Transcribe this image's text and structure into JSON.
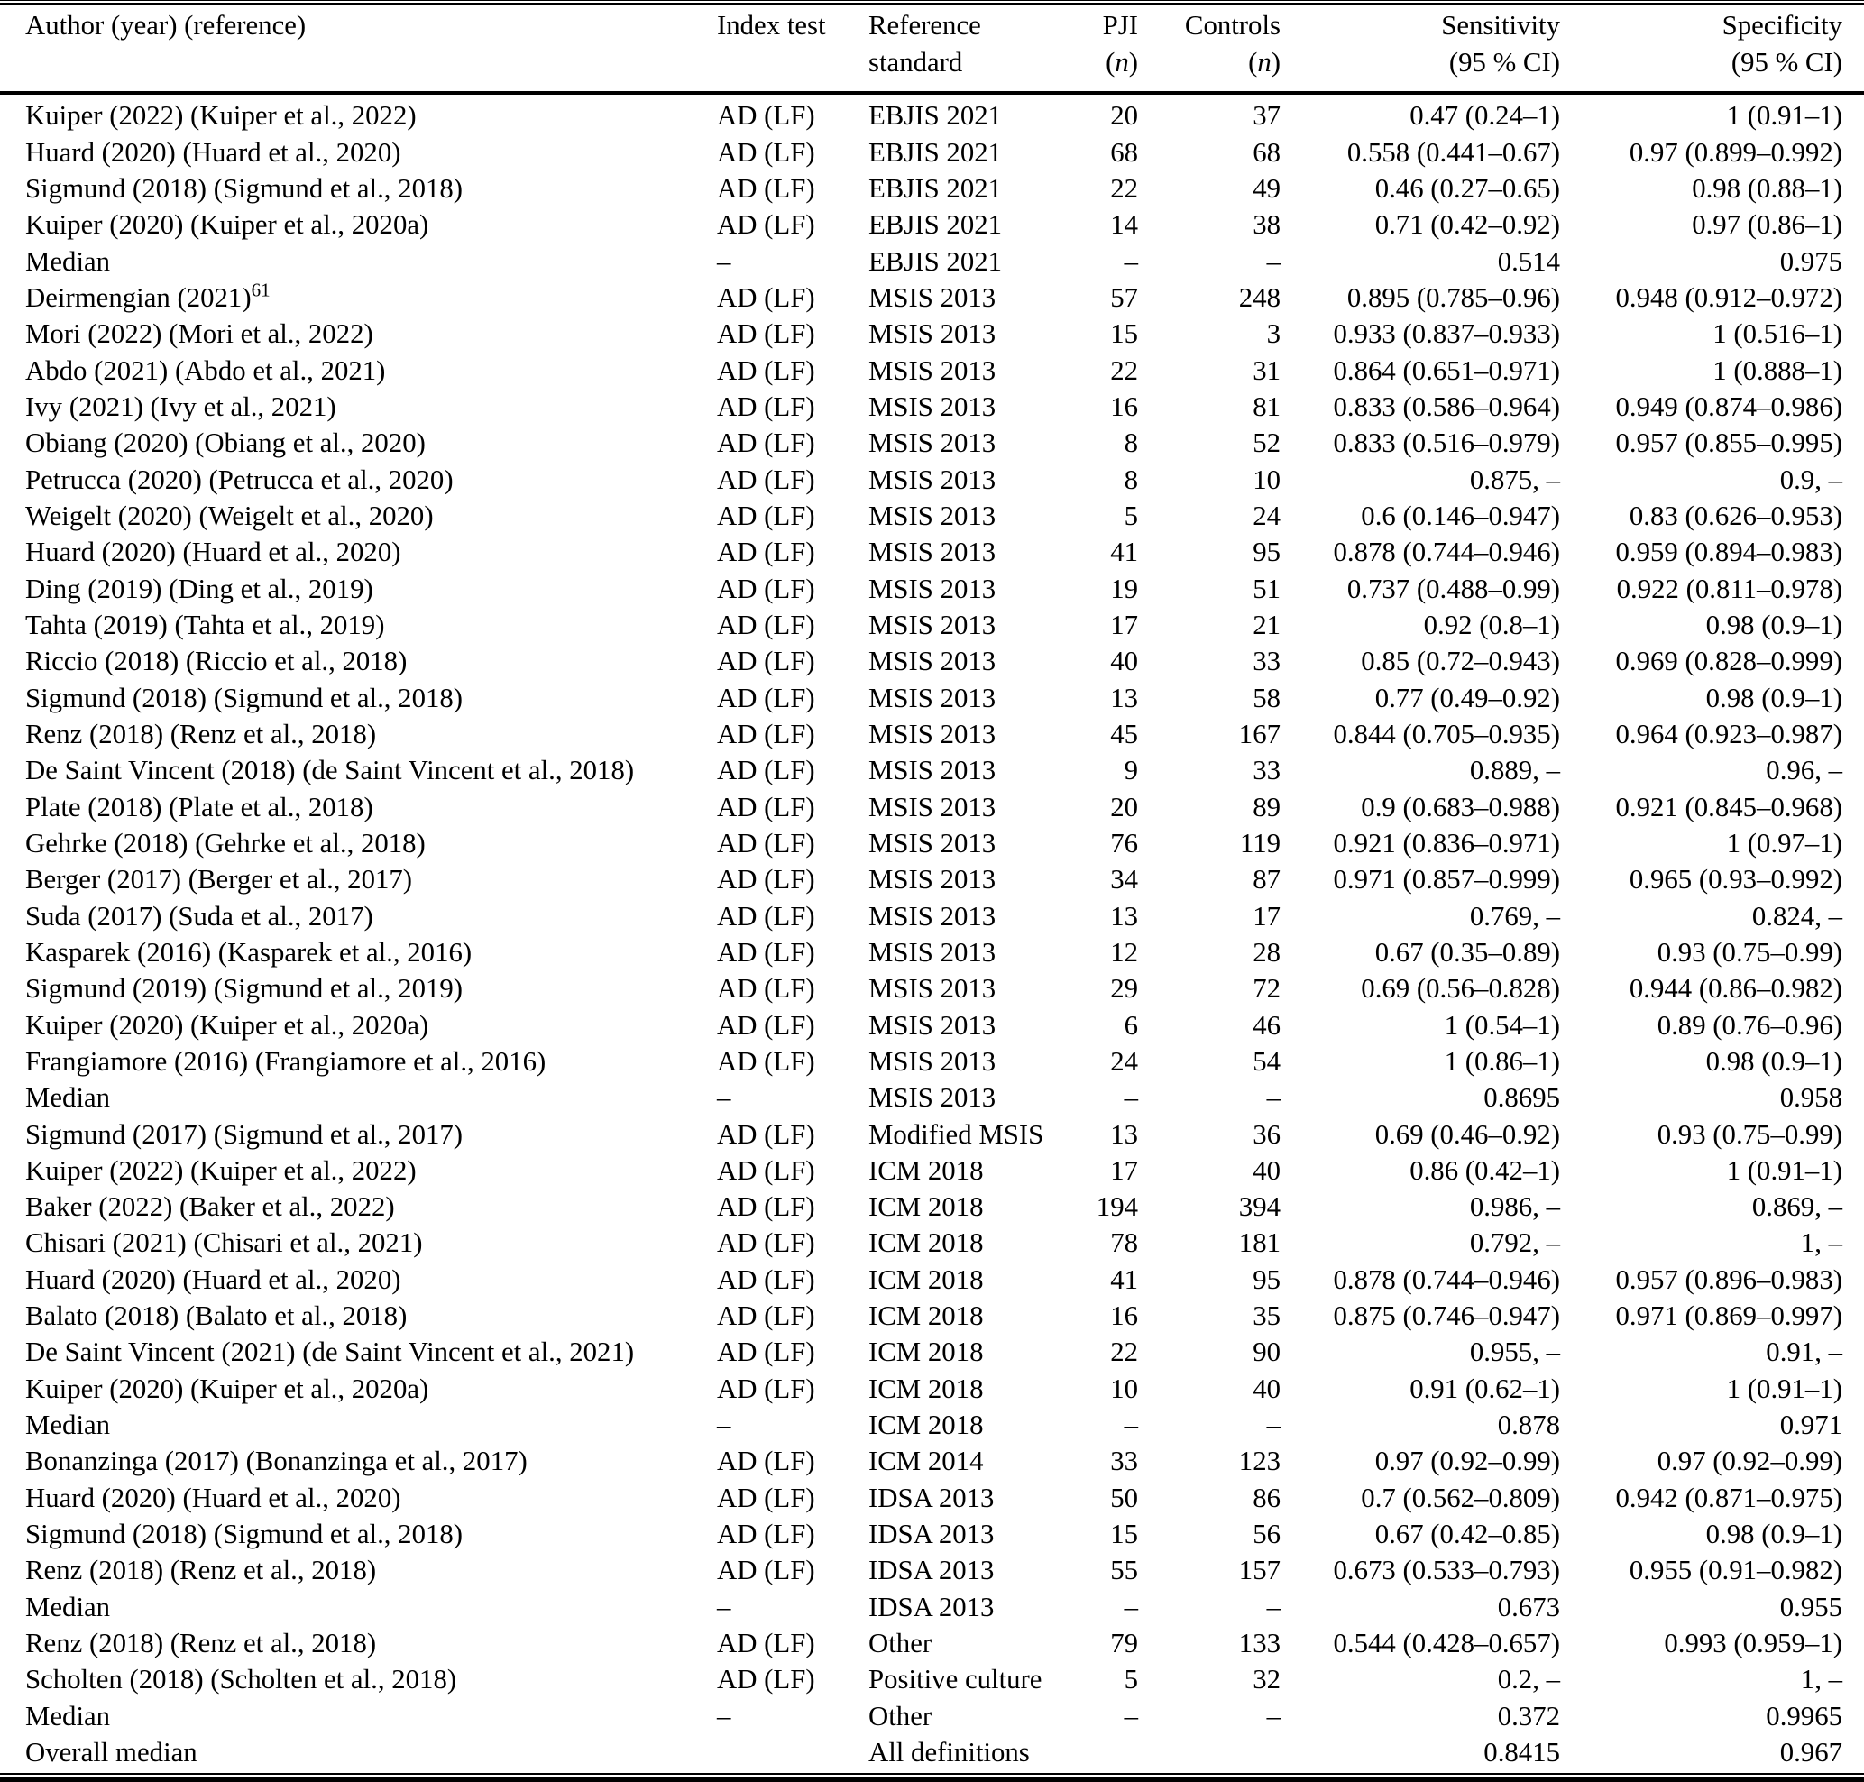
{
  "header": {
    "author": "Author (year) (reference)",
    "index_test": "Index test",
    "reference_line1": "Reference",
    "reference_line2": "standard",
    "pji": "PJI",
    "controls": "Controls",
    "n_open": "(",
    "n": "n",
    "n_close": ")",
    "sensitivity": "Sensitivity",
    "sensitivity_ci": "(95 % CI)",
    "specificity": "Specificity",
    "specificity_ci": "(95 % CI)"
  },
  "rows": [
    {
      "author": "Kuiper (2022) (Kuiper et al., 2022)",
      "index": "AD (LF)",
      "ref": "EBJIS 2021",
      "pji": "20",
      "controls": "37",
      "sens": "0.47 (0.24–1)",
      "spec": "1 (0.91–1)"
    },
    {
      "author": "Huard (2020) (Huard et al., 2020)",
      "index": "AD (LF)",
      "ref": "EBJIS 2021",
      "pji": "68",
      "controls": "68",
      "sens": "0.558 (0.441–0.67)",
      "spec": "0.97 (0.899–0.992)"
    },
    {
      "author": "Sigmund (2018) (Sigmund et al., 2018)",
      "index": "AD (LF)",
      "ref": "EBJIS 2021",
      "pji": "22",
      "controls": "49",
      "sens": "0.46 (0.27–0.65)",
      "spec": "0.98 (0.88–1)"
    },
    {
      "author": "Kuiper (2020) (Kuiper et al., 2020a)",
      "index": "AD (LF)",
      "ref": "EBJIS 2021",
      "pji": "14",
      "controls": "38",
      "sens": "0.71 (0.42–0.92)",
      "spec": "0.97 (0.86–1)"
    },
    {
      "author": "Median",
      "index": "–",
      "ref": "EBJIS 2021",
      "pji": "–",
      "controls": "–",
      "sens": "0.514",
      "spec": "0.975"
    },
    {
      "author": "Deirmengian (2021)",
      "sup": "61",
      "index": "AD (LF)",
      "ref": "MSIS 2013",
      "pji": "57",
      "controls": "248",
      "sens": "0.895 (0.785–0.96)",
      "spec": "0.948 (0.912–0.972)"
    },
    {
      "author": "Mori (2022) (Mori et al., 2022)",
      "index": "AD (LF)",
      "ref": "MSIS 2013",
      "pji": "15",
      "controls": "3",
      "sens": "0.933 (0.837–0.933)",
      "spec": "1 (0.516–1)"
    },
    {
      "author": "Abdo (2021) (Abdo et al., 2021)",
      "index": "AD (LF)",
      "ref": "MSIS 2013",
      "pji": "22",
      "controls": "31",
      "sens": "0.864 (0.651–0.971)",
      "spec": "1 (0.888–1)"
    },
    {
      "author": "Ivy (2021) (Ivy et al., 2021)",
      "index": "AD (LF)",
      "ref": "MSIS 2013",
      "pji": "16",
      "controls": "81",
      "sens": "0.833 (0.586–0.964)",
      "spec": "0.949 (0.874–0.986)"
    },
    {
      "author": "Obiang (2020) (Obiang et al., 2020)",
      "index": "AD (LF)",
      "ref": "MSIS 2013",
      "pji": "8",
      "controls": "52",
      "sens": "0.833 (0.516–0.979)",
      "spec": "0.957 (0.855–0.995)"
    },
    {
      "author": "Petrucca (2020) (Petrucca et al., 2020)",
      "index": "AD (LF)",
      "ref": "MSIS 2013",
      "pji": "8",
      "controls": "10",
      "sens": "0.875, –",
      "spec": "0.9, –"
    },
    {
      "author": "Weigelt (2020) (Weigelt et al., 2020)",
      "index": "AD (LF)",
      "ref": "MSIS 2013",
      "pji": "5",
      "controls": "24",
      "sens": "0.6 (0.146–0.947)",
      "spec": "0.83 (0.626–0.953)"
    },
    {
      "author": "Huard (2020) (Huard et al., 2020)",
      "index": "AD (LF)",
      "ref": "MSIS 2013",
      "pji": "41",
      "controls": "95",
      "sens": "0.878 (0.744–0.946)",
      "spec": "0.959 (0.894–0.983)"
    },
    {
      "author": "Ding (2019) (Ding et al., 2019)",
      "index": "AD (LF)",
      "ref": "MSIS 2013",
      "pji": "19",
      "controls": "51",
      "sens": "0.737 (0.488–0.99)",
      "spec": "0.922 (0.811–0.978)"
    },
    {
      "author": "Tahta (2019) (Tahta et al., 2019)",
      "index": "AD (LF)",
      "ref": "MSIS 2013",
      "pji": "17",
      "controls": "21",
      "sens": "0.92 (0.8–1)",
      "spec": "0.98 (0.9–1)"
    },
    {
      "author": "Riccio (2018) (Riccio et al., 2018)",
      "index": "AD (LF)",
      "ref": "MSIS 2013",
      "pji": "40",
      "controls": "33",
      "sens": "0.85 (0.72–0.943)",
      "spec": "0.969 (0.828–0.999)"
    },
    {
      "author": "Sigmund (2018) (Sigmund et al., 2018)",
      "index": "AD (LF)",
      "ref": "MSIS 2013",
      "pji": "13",
      "controls": "58",
      "sens": "0.77 (0.49–0.92)",
      "spec": "0.98 (0.9–1)"
    },
    {
      "author": "Renz (2018) (Renz et al., 2018)",
      "index": "AD (LF)",
      "ref": "MSIS 2013",
      "pji": "45",
      "controls": "167",
      "sens": "0.844 (0.705–0.935)",
      "spec": "0.964 (0.923–0.987)"
    },
    {
      "author": "De Saint Vincent (2018) (de Saint Vincent et al., 2018)",
      "index": "AD (LF)",
      "ref": "MSIS 2013",
      "pji": "9",
      "controls": "33",
      "sens": "0.889, –",
      "spec": "0.96, –"
    },
    {
      "author": "Plate (2018) (Plate et al., 2018)",
      "index": "AD (LF)",
      "ref": "MSIS 2013",
      "pji": "20",
      "controls": "89",
      "sens": "0.9 (0.683–0.988)",
      "spec": "0.921 (0.845–0.968)"
    },
    {
      "author": "Gehrke (2018) (Gehrke et al., 2018)",
      "index": "AD (LF)",
      "ref": "MSIS 2013",
      "pji": "76",
      "controls": "119",
      "sens": "0.921 (0.836–0.971)",
      "spec": "1 (0.97–1)"
    },
    {
      "author": "Berger (2017) (Berger et al., 2017)",
      "index": "AD (LF)",
      "ref": "MSIS 2013",
      "pji": "34",
      "controls": "87",
      "sens": "0.971 (0.857–0.999)",
      "spec": "0.965 (0.93–0.992)"
    },
    {
      "author": "Suda (2017) (Suda et al., 2017)",
      "index": "AD (LF)",
      "ref": "MSIS 2013",
      "pji": "13",
      "controls": "17",
      "sens": "0.769, –",
      "spec": "0.824, –"
    },
    {
      "author": "Kasparek (2016) (Kasparek et al., 2016)",
      "index": "AD (LF)",
      "ref": "MSIS 2013",
      "pji": "12",
      "controls": "28",
      "sens": "0.67 (0.35–0.89)",
      "spec": "0.93 (0.75–0.99)"
    },
    {
      "author": "Sigmund (2019) (Sigmund et al., 2019)",
      "index": "AD (LF)",
      "ref": "MSIS 2013",
      "pji": "29",
      "controls": "72",
      "sens": "0.69 (0.56–0.828)",
      "spec": "0.944 (0.86–0.982)"
    },
    {
      "author": "Kuiper (2020) (Kuiper et al., 2020a)",
      "index": "AD (LF)",
      "ref": "MSIS 2013",
      "pji": "6",
      "controls": "46",
      "sens": "1 (0.54–1)",
      "spec": "0.89 (0.76–0.96)"
    },
    {
      "author": "Frangiamore (2016) (Frangiamore et al., 2016)",
      "index": "AD (LF)",
      "ref": "MSIS 2013",
      "pji": "24",
      "controls": "54",
      "sens": "1 (0.86–1)",
      "spec": "0.98 (0.9–1)"
    },
    {
      "author": "Median",
      "index": "–",
      "ref": "MSIS 2013",
      "pji": "–",
      "controls": "–",
      "sens": "0.8695",
      "spec": "0.958"
    },
    {
      "author": "Sigmund (2017) (Sigmund et al., 2017)",
      "index": "AD (LF)",
      "ref": "Modified MSIS",
      "pji": "13",
      "controls": "36",
      "sens": "0.69 (0.46–0.92)",
      "spec": "0.93 (0.75–0.99)"
    },
    {
      "author": "Kuiper (2022) (Kuiper et al., 2022)",
      "index": "AD (LF)",
      "ref": "ICM 2018",
      "pji": "17",
      "controls": "40",
      "sens": "0.86 (0.42–1)",
      "spec": "1 (0.91–1)"
    },
    {
      "author": "Baker (2022) (Baker et al., 2022)",
      "index": "AD (LF)",
      "ref": "ICM 2018",
      "pji": "194",
      "controls": "394",
      "sens": "0.986, –",
      "spec": "0.869, –"
    },
    {
      "author": "Chisari (2021) (Chisari et al., 2021)",
      "index": "AD (LF)",
      "ref": "ICM 2018",
      "pji": "78",
      "controls": "181",
      "sens": "0.792, –",
      "spec": "1, –"
    },
    {
      "author": "Huard (2020) (Huard et al., 2020)",
      "index": "AD (LF)",
      "ref": "ICM 2018",
      "pji": "41",
      "controls": "95",
      "sens": "0.878 (0.744–0.946)",
      "spec": "0.957 (0.896–0.983)"
    },
    {
      "author": "Balato (2018) (Balato et al., 2018)",
      "index": "AD (LF)",
      "ref": "ICM 2018",
      "pji": "16",
      "controls": "35",
      "sens": "0.875 (0.746–0.947)",
      "spec": "0.971 (0.869–0.997)"
    },
    {
      "author": "De Saint Vincent (2021) (de Saint Vincent et al., 2021)",
      "index": "AD (LF)",
      "ref": "ICM 2018",
      "pji": "22",
      "controls": "90",
      "sens": "0.955, –",
      "spec": "0.91, –"
    },
    {
      "author": "Kuiper (2020) (Kuiper et al., 2020a)",
      "index": "AD (LF)",
      "ref": "ICM 2018",
      "pji": "10",
      "controls": "40",
      "sens": "0.91 (0.62–1)",
      "spec": "1 (0.91–1)"
    },
    {
      "author": "Median",
      "index": "–",
      "ref": "ICM 2018",
      "pji": "–",
      "controls": "–",
      "sens": "0.878",
      "spec": "0.971"
    },
    {
      "author": "Bonanzinga (2017) (Bonanzinga et al., 2017)",
      "index": "AD (LF)",
      "ref": "ICM 2014",
      "pji": "33",
      "controls": "123",
      "sens": "0.97 (0.92–0.99)",
      "spec": "0.97 (0.92–0.99)"
    },
    {
      "author": "Huard (2020) (Huard et al., 2020)",
      "index": "AD (LF)",
      "ref": "IDSA 2013",
      "pji": "50",
      "controls": "86",
      "sens": "0.7 (0.562–0.809)",
      "spec": "0.942 (0.871–0.975)"
    },
    {
      "author": "Sigmund (2018) (Sigmund et al., 2018)",
      "index": "AD (LF)",
      "ref": "IDSA 2013",
      "pji": "15",
      "controls": "56",
      "sens": "0.67 (0.42–0.85)",
      "spec": "0.98 (0.9–1)"
    },
    {
      "author": "Renz (2018) (Renz et al., 2018)",
      "index": "AD (LF)",
      "ref": "IDSA 2013",
      "pji": "55",
      "controls": "157",
      "sens": "0.673 (0.533–0.793)",
      "spec": "0.955 (0.91–0.982)"
    },
    {
      "author": "Median",
      "index": "–",
      "ref": "IDSA 2013",
      "pji": "–",
      "controls": "–",
      "sens": "0.673",
      "spec": "0.955"
    },
    {
      "author": "Renz (2018) (Renz et al., 2018)",
      "index": "AD (LF)",
      "ref": "Other",
      "pji": "79",
      "controls": "133",
      "sens": "0.544 (0.428–0.657)",
      "spec": "0.993 (0.959–1)"
    },
    {
      "author": "Scholten (2018) (Scholten et al., 2018)",
      "index": "AD (LF)",
      "ref": "Positive culture",
      "pji": "5",
      "controls": "32",
      "sens": "0.2, –",
      "spec": "1, –"
    },
    {
      "author": "Median",
      "index": "–",
      "ref": "Other",
      "pji": "–",
      "controls": "–",
      "sens": "0.372",
      "spec": "0.9965"
    },
    {
      "author": "Overall median",
      "index": "",
      "ref": "All definitions",
      "pji": "",
      "controls": "",
      "sens": "0.8415",
      "spec": "0.967"
    }
  ]
}
